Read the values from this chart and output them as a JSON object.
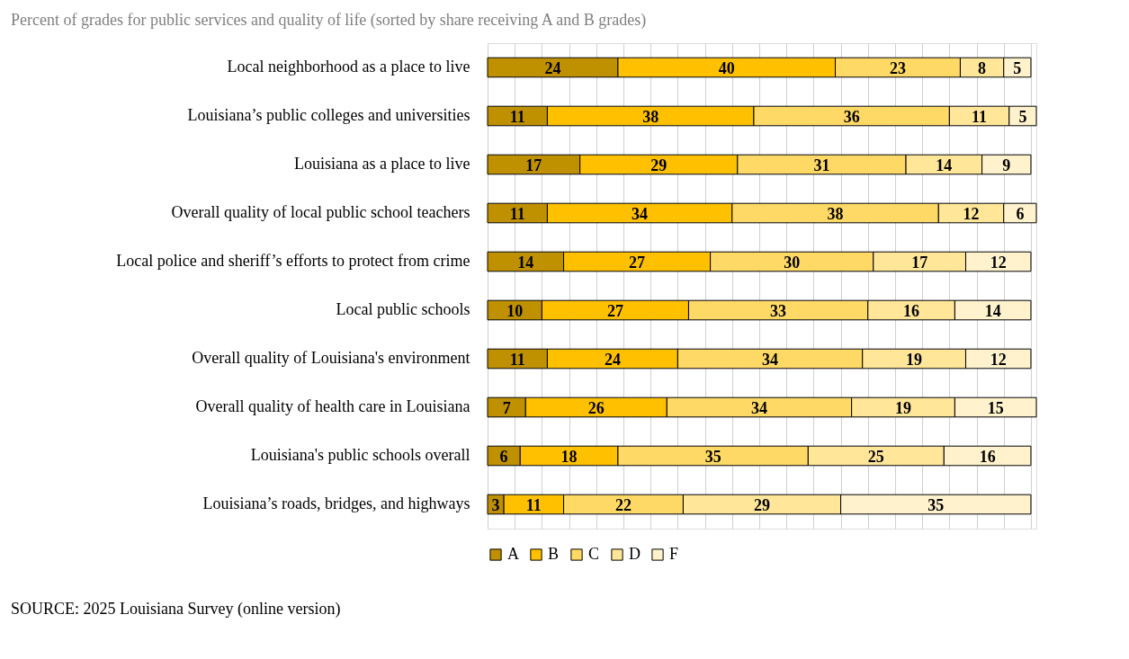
{
  "chart_data": {
    "type": "bar",
    "orientation": "horizontal",
    "stacked": true,
    "data_labels": true,
    "title": "Percent of grades for public services and quality of life (sorted by share receiving A and B grades)",
    "categories": [
      "Local neighborhood as a place to live",
      "Louisiana’s public colleges and universities",
      "Louisiana as a place to live",
      "Overall quality of local public school teachers",
      "Local police and sheriff’s efforts to protect from crime",
      "Local public schools",
      "Overall quality of Louisiana's environment",
      "Overall quality of health care in Louisiana",
      "Louisiana's public schools overall",
      "Louisiana’s roads, bridges, and highways"
    ],
    "series": [
      {
        "name": "A",
        "color": "#bf9000",
        "values": [
          24,
          11,
          17,
          11,
          14,
          10,
          11,
          7,
          6,
          3
        ]
      },
      {
        "name": "B",
        "color": "#ffc000",
        "values": [
          40,
          38,
          29,
          34,
          27,
          27,
          24,
          26,
          18,
          11
        ]
      },
      {
        "name": "C",
        "color": "#ffd966",
        "values": [
          23,
          36,
          31,
          38,
          30,
          33,
          34,
          34,
          35,
          22
        ]
      },
      {
        "name": "D",
        "color": "#ffe699",
        "values": [
          8,
          11,
          14,
          12,
          17,
          16,
          19,
          19,
          25,
          29
        ]
      },
      {
        "name": "F",
        "color": "#fff2cc",
        "values": [
          5,
          5,
          9,
          6,
          12,
          14,
          12,
          15,
          16,
          35
        ]
      }
    ],
    "xlim": [
      0,
      101
    ],
    "tick_labels": "y",
    "grid": "x",
    "legend": "bottom",
    "annotations": [
      "SOURCE: 2025 Louisiana Survey  (online version)"
    ]
  }
}
